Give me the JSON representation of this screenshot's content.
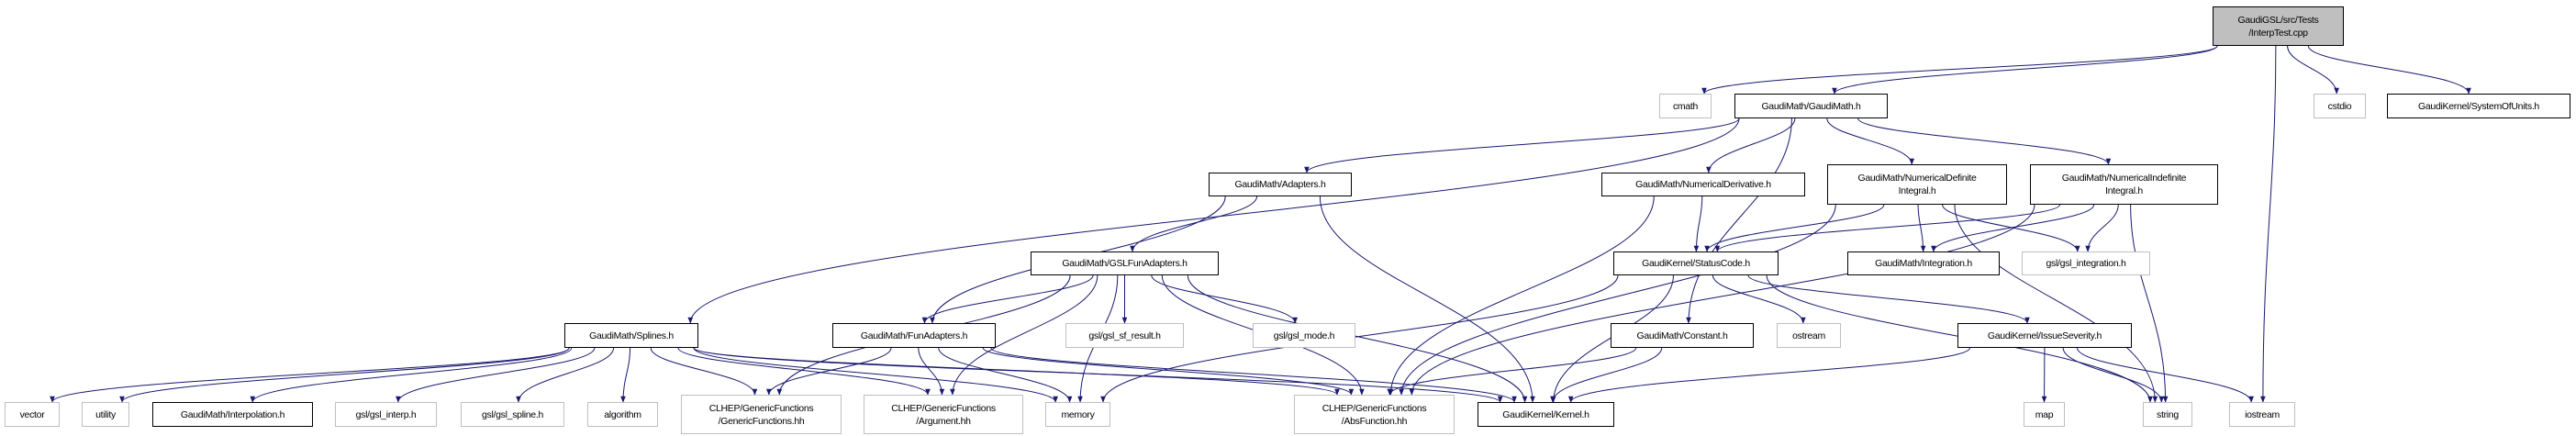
{
  "graph": {
    "edge_color": "#191970",
    "root_fill": "#bfbfbf",
    "external_border": "#bfbfbf",
    "nodes": {
      "interptest": {
        "lines": [
          "GaudiGSL/src/Tests",
          "/InterpTest.cpp"
        ],
        "kind": "root"
      },
      "cmath": {
        "lines": [
          "cmath"
        ],
        "kind": "ext"
      },
      "gaudimath": {
        "lines": [
          "GaudiMath/GaudiMath.h"
        ],
        "kind": "doc"
      },
      "cstdio": {
        "lines": [
          "cstdio"
        ],
        "kind": "ext"
      },
      "systemofunits": {
        "lines": [
          "GaudiKernel/SystemOfUnits.h"
        ],
        "kind": "doc"
      },
      "adapters": {
        "lines": [
          "GaudiMath/Adapters.h"
        ],
        "kind": "doc"
      },
      "numderiv": {
        "lines": [
          "GaudiMath/NumericalDerivative.h"
        ],
        "kind": "doc"
      },
      "numdef": {
        "lines": [
          "GaudiMath/NumericalDefinite",
          "Integral.h"
        ],
        "kind": "doc"
      },
      "numindef": {
        "lines": [
          "GaudiMath/NumericalIndefinite",
          "Integral.h"
        ],
        "kind": "doc"
      },
      "gslfunadapters": {
        "lines": [
          "GaudiMath/GSLFunAdapters.h"
        ],
        "kind": "doc"
      },
      "statuscode": {
        "lines": [
          "GaudiKernel/StatusCode.h"
        ],
        "kind": "doc"
      },
      "integration": {
        "lines": [
          "GaudiMath/Integration.h"
        ],
        "kind": "doc"
      },
      "gslintegration": {
        "lines": [
          "gsl/gsl_integration.h"
        ],
        "kind": "ext"
      },
      "splines": {
        "lines": [
          "GaudiMath/Splines.h"
        ],
        "kind": "doc"
      },
      "funadapters": {
        "lines": [
          "GaudiMath/FunAdapters.h"
        ],
        "kind": "doc"
      },
      "gslsfresult": {
        "lines": [
          "gsl/gsl_sf_result.h"
        ],
        "kind": "ext"
      },
      "gslmode": {
        "lines": [
          "gsl/gsl_mode.h"
        ],
        "kind": "ext"
      },
      "constant": {
        "lines": [
          "GaudiMath/Constant.h"
        ],
        "kind": "doc"
      },
      "ostream": {
        "lines": [
          "ostream"
        ],
        "kind": "ext"
      },
      "issueseverity": {
        "lines": [
          "GaudiKernel/IssueSeverity.h"
        ],
        "kind": "doc"
      },
      "vector": {
        "lines": [
          "vector"
        ],
        "kind": "ext"
      },
      "utility": {
        "lines": [
          "utility"
        ],
        "kind": "ext"
      },
      "interpolation": {
        "lines": [
          "GaudiMath/Interpolation.h"
        ],
        "kind": "doc"
      },
      "gslinterp": {
        "lines": [
          "gsl/gsl_interp.h"
        ],
        "kind": "ext"
      },
      "gslspline": {
        "lines": [
          "gsl/gsl_spline.h"
        ],
        "kind": "ext"
      },
      "algorithm": {
        "lines": [
          "algorithm"
        ],
        "kind": "ext"
      },
      "genericfunctions": {
        "lines": [
          "CLHEP/GenericFunctions",
          "/GenericFunctions.hh"
        ],
        "kind": "ext"
      },
      "argument": {
        "lines": [
          "CLHEP/GenericFunctions",
          "/Argument.hh"
        ],
        "kind": "ext"
      },
      "memory": {
        "lines": [
          "memory"
        ],
        "kind": "ext"
      },
      "absfunction": {
        "lines": [
          "CLHEP/GenericFunctions",
          "/AbsFunction.hh"
        ],
        "kind": "ext"
      },
      "kernel": {
        "lines": [
          "GaudiKernel/Kernel.h"
        ],
        "kind": "doc"
      },
      "map": {
        "lines": [
          "map"
        ],
        "kind": "ext"
      },
      "string": {
        "lines": [
          "string"
        ],
        "kind": "ext"
      },
      "iostream": {
        "lines": [
          "iostream"
        ],
        "kind": "ext"
      }
    },
    "edges": [
      [
        "interptest",
        "cmath"
      ],
      [
        "interptest",
        "gaudimath"
      ],
      [
        "interptest",
        "cstdio"
      ],
      [
        "interptest",
        "systemofunits"
      ],
      [
        "interptest",
        "iostream"
      ],
      [
        "gaudimath",
        "splines"
      ],
      [
        "gaudimath",
        "adapters"
      ],
      [
        "gaudimath",
        "numderiv"
      ],
      [
        "gaudimath",
        "numdef"
      ],
      [
        "gaudimath",
        "numindef"
      ],
      [
        "gaudimath",
        "constant"
      ],
      [
        "adapters",
        "gslfunadapters"
      ],
      [
        "adapters",
        "funadapters"
      ],
      [
        "adapters",
        "kernel"
      ],
      [
        "gslfunadapters",
        "funadapters"
      ],
      [
        "gslfunadapters",
        "genericfunctions"
      ],
      [
        "gslfunadapters",
        "argument"
      ],
      [
        "gslfunadapters",
        "memory"
      ],
      [
        "gslfunadapters",
        "gslsfresult"
      ],
      [
        "gslfunadapters",
        "gslmode"
      ],
      [
        "gslfunadapters",
        "absfunction"
      ],
      [
        "gslfunadapters",
        "kernel"
      ],
      [
        "splines",
        "vector"
      ],
      [
        "splines",
        "utility"
      ],
      [
        "splines",
        "interpolation"
      ],
      [
        "splines",
        "gslinterp"
      ],
      [
        "splines",
        "gslspline"
      ],
      [
        "splines",
        "algorithm"
      ],
      [
        "splines",
        "genericfunctions"
      ],
      [
        "splines",
        "argument"
      ],
      [
        "splines",
        "memory"
      ],
      [
        "splines",
        "absfunction"
      ],
      [
        "splines",
        "kernel"
      ],
      [
        "funadapters",
        "genericfunctions"
      ],
      [
        "funadapters",
        "argument"
      ],
      [
        "funadapters",
        "memory"
      ],
      [
        "funadapters",
        "absfunction"
      ],
      [
        "funadapters",
        "kernel"
      ],
      [
        "numderiv",
        "statuscode"
      ],
      [
        "numderiv",
        "absfunction"
      ],
      [
        "numdef",
        "statuscode"
      ],
      [
        "numdef",
        "integration"
      ],
      [
        "numdef",
        "gslintegration"
      ],
      [
        "numdef",
        "absfunction"
      ],
      [
        "numdef",
        "string"
      ],
      [
        "numindef",
        "statuscode"
      ],
      [
        "numindef",
        "integration"
      ],
      [
        "numindef",
        "gslintegration"
      ],
      [
        "numindef",
        "absfunction"
      ],
      [
        "numindef",
        "string"
      ],
      [
        "statuscode",
        "memory"
      ],
      [
        "statuscode",
        "ostream"
      ],
      [
        "statuscode",
        "issueseverity"
      ],
      [
        "statuscode",
        "kernel"
      ],
      [
        "statuscode",
        "string"
      ],
      [
        "constant",
        "absfunction"
      ],
      [
        "constant",
        "kernel"
      ],
      [
        "issueseverity",
        "kernel"
      ],
      [
        "issueseverity",
        "map"
      ],
      [
        "issueseverity",
        "string"
      ],
      [
        "issueseverity",
        "iostream"
      ]
    ]
  }
}
